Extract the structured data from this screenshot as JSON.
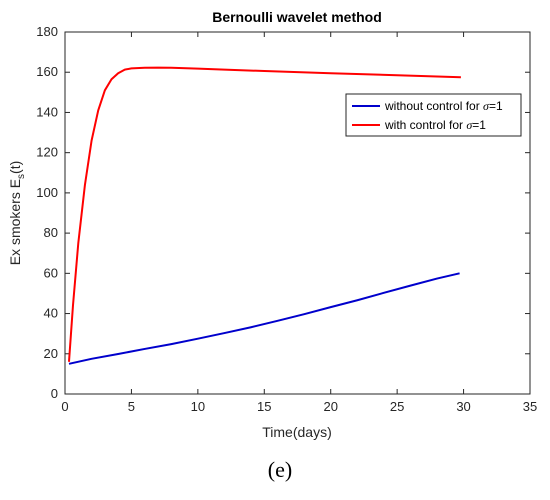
{
  "chart_data": {
    "type": "line",
    "title": "Bernoulli wavelet method",
    "xlabel": "Time(days)",
    "ylabel_main": "Ex smokers E",
    "ylabel_sub": "s",
    "ylabel_tail": "(t)",
    "xlim": [
      0,
      35
    ],
    "ylim": [
      0,
      180
    ],
    "x_ticks": [
      0,
      5,
      10,
      15,
      20,
      25,
      30,
      35
    ],
    "y_ticks": [
      0,
      20,
      40,
      60,
      80,
      100,
      120,
      140,
      160,
      180
    ],
    "grid": false,
    "legend_position": "upper-right",
    "series": [
      {
        "name_prefix": "without control for ",
        "name_symbol": "σ",
        "name_suffix": "=1",
        "color": "#0000cc",
        "x": [
          0.3,
          2,
          4,
          6,
          8,
          10,
          12,
          14,
          16,
          18,
          20,
          22,
          24,
          26,
          28,
          29.7
        ],
        "y": [
          15,
          17.5,
          19.9,
          22.4,
          24.8,
          27.5,
          30.3,
          33.2,
          36.4,
          39.7,
          43.2,
          46.6,
          50.3,
          53.9,
          57.4,
          60
        ]
      },
      {
        "name_prefix": "with control for ",
        "name_symbol": "σ",
        "name_suffix": "=1",
        "color": "#ff0000",
        "x": [
          0.3,
          0.6,
          1.0,
          1.5,
          2.0,
          2.5,
          3.0,
          3.5,
          4.0,
          4.5,
          5.0,
          6.0,
          7.0,
          8.0,
          10,
          12,
          15,
          20,
          25,
          29.8
        ],
        "y": [
          16,
          44,
          75,
          104,
          126,
          141,
          151,
          156.5,
          159.5,
          161.3,
          161.9,
          162.2,
          162.3,
          162.2,
          161.8,
          161.3,
          160.6,
          159.5,
          158.5,
          157.5
        ]
      }
    ]
  },
  "panel_label": "(e)"
}
